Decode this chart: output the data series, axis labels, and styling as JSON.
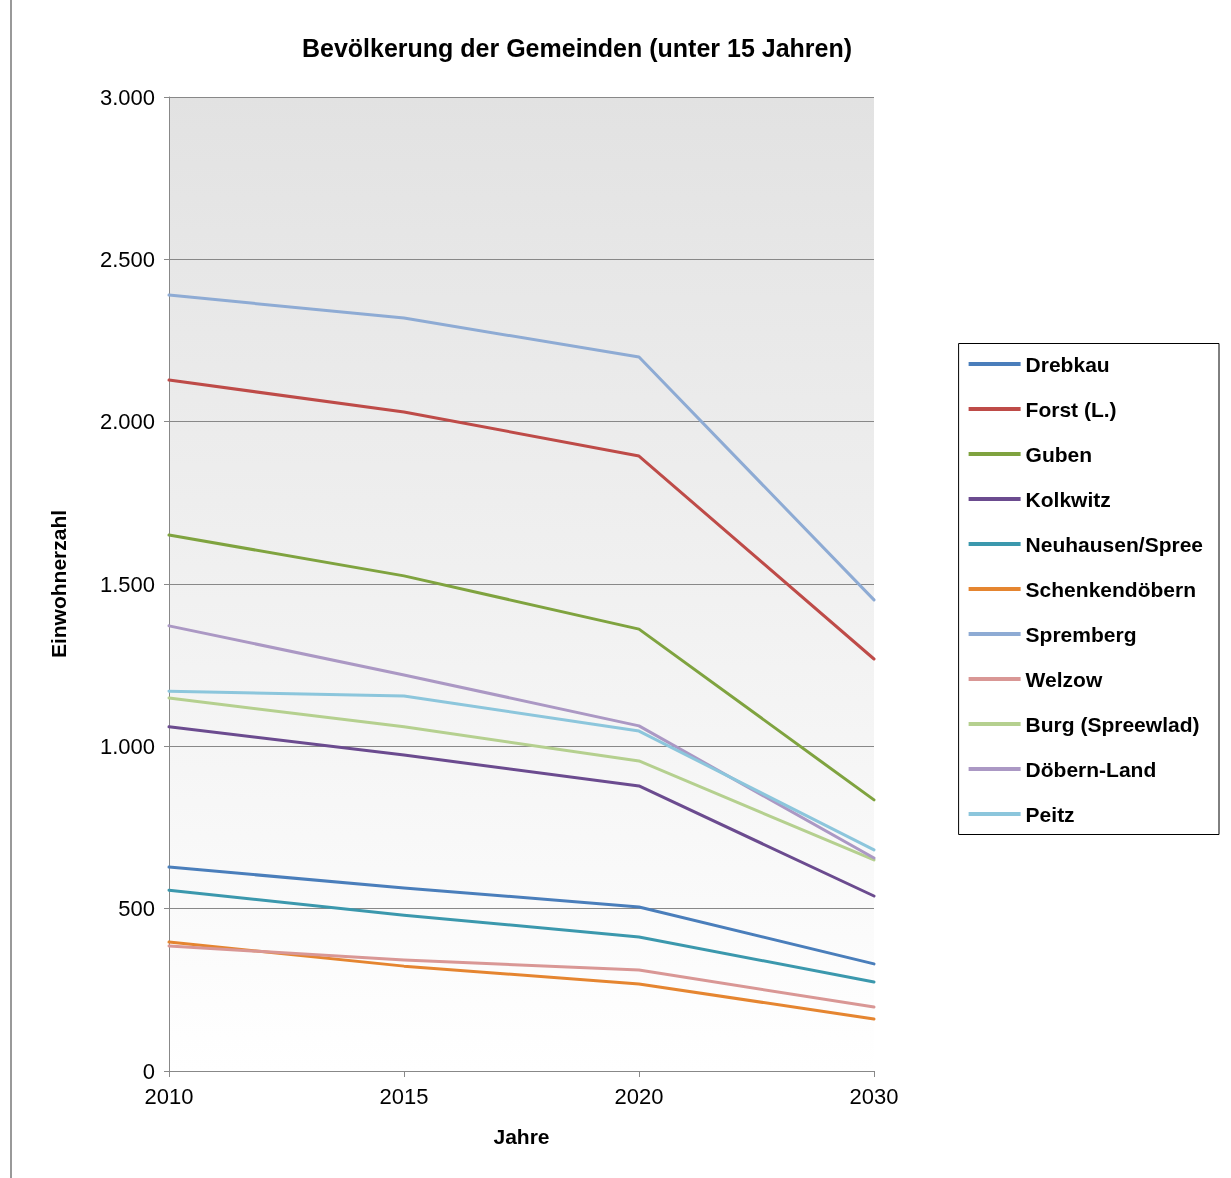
{
  "chart_data": {
    "type": "line",
    "title": "Bevölkerung der Gemeinden (unter 15 Jahren)",
    "xlabel": "Jahre",
    "ylabel": "Einwohnerzahl",
    "categories": [
      "2010",
      "2015",
      "2020",
      "2030"
    ],
    "ylim": [
      0,
      3000
    ],
    "yticks": [
      0,
      500,
      {
        "value": 1000,
        "label": "1.000"
      },
      {
        "value": 1500,
        "label": "1.500"
      },
      {
        "value": 2000,
        "label": "2.000"
      },
      {
        "value": 2500,
        "label": "2.500"
      },
      {
        "value": 3000,
        "label": "3.000"
      }
    ],
    "grid": "y",
    "legend": "right",
    "marker": "none",
    "line_style": "solid",
    "series": [
      {
        "name": "Drebkau",
        "color": "#4a7ebb",
        "values": [
          628,
          564,
          505,
          330
        ]
      },
      {
        "name": "Forst (L.)",
        "color": "#be4b48",
        "values": [
          2128,
          2030,
          1894,
          1269
        ]
      },
      {
        "name": "Guben",
        "color": "#7fa33f",
        "values": [
          1651,
          1525,
          1361,
          835
        ]
      },
      {
        "name": "Kolkwitz",
        "color": "#6b4b8f",
        "values": [
          1060,
          973,
          878,
          539
        ]
      },
      {
        "name": "Neuhausen/Spree",
        "color": "#3b98ad",
        "values": [
          557,
          480,
          413,
          274
        ]
      },
      {
        "name": "Schenkendöbern",
        "color": "#e58530",
        "values": [
          397,
          323,
          268,
          160
        ]
      },
      {
        "name": "Spremberg",
        "color": "#8eabd4",
        "values": [
          2390,
          2319,
          2199,
          1451
        ]
      },
      {
        "name": "Welzow",
        "color": "#d99795",
        "values": [
          385,
          342,
          311,
          197
        ]
      },
      {
        "name": "Burg (Spreewlad)",
        "color": "#b5d08f",
        "values": [
          1149,
          1060,
          955,
          650
        ]
      },
      {
        "name": "Döbern-Land",
        "color": "#ab98c4",
        "values": [
          1371,
          1220,
          1063,
          656
        ]
      },
      {
        "name": "Peitz",
        "color": "#8cc6dc",
        "values": [
          1170,
          1155,
          1047,
          681
        ]
      }
    ]
  }
}
